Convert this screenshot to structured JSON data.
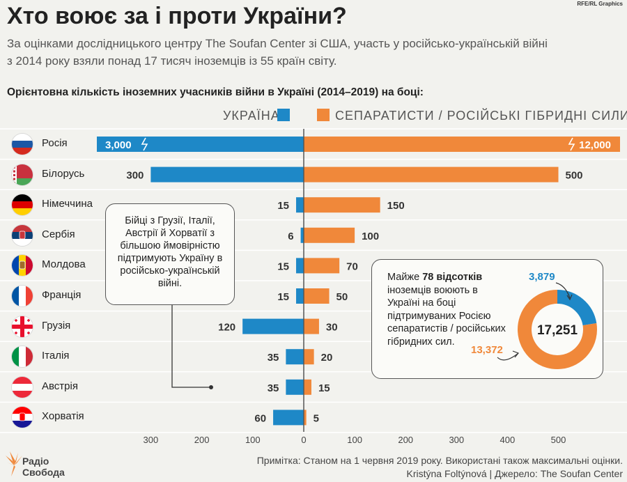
{
  "title": "Хто воює за і проти України?",
  "credit": "RFE/RL Graphics",
  "subtitle_lines": [
    "За оцінками дослідницького центру The Soufan Center зі США, участь у російсько-українській війні",
    "з 2014 року взяли понад 17 тисяч іноземців із 55 країн світу."
  ],
  "section_title": "Орієнтовна кількість іноземних учасників війни в Україні (2014–2019) на боці:",
  "callout": "Бійці з Грузії, Італії, Австрії й Хорватії з більшою ймовірністю підтримують Україну в російсько-українській війні.",
  "donut_text_html": "Майже <b>78 відсотків</b> іноземців воюють в Україні на боці підтримуваних Росією сепаратистів / російських гібридних сил.",
  "note": "Примітка: Станом на 1 червня 2019 року. Використані також максимальні оцінки.",
  "source": "Kristýna Foltýnová | Джерело: The Soufan Center",
  "logo_lines": [
    "Радіо",
    "Свобода"
  ],
  "colors": {
    "ukraine": "#1e88c7",
    "separatists": "#f0883a"
  },
  "chart_data": [
    {
      "type": "bar",
      "orientation": "diverging-horizontal",
      "categories": [
        "Росія",
        "Білорусь",
        "Німеччина",
        "Сербія",
        "Молдова",
        "Франція",
        "Грузія",
        "Італія",
        "Австрія",
        "Хорватія"
      ],
      "series": [
        {
          "name": "Україна",
          "values": [
            3000,
            300,
            15,
            6,
            15,
            15,
            120,
            35,
            35,
            60
          ],
          "labels": [
            "3,000",
            "300",
            "15",
            "6",
            "15",
            "15",
            "120",
            "35",
            "35",
            "60"
          ]
        },
        {
          "name": "Сепаратисти / російські гібридні сили",
          "values": [
            12000,
            500,
            150,
            100,
            70,
            50,
            30,
            20,
            15,
            5
          ],
          "labels": [
            "12,000",
            "500",
            "150",
            "100",
            "70",
            "50",
            "30",
            "20",
            "15",
            "5"
          ]
        }
      ],
      "truncated_category": "Росія",
      "axis_ticks_left": [
        "300",
        "200",
        "100",
        "0"
      ],
      "axis_ticks_right": [
        "100",
        "200",
        "300",
        "400",
        "500"
      ],
      "xlim": [
        -300,
        500
      ]
    },
    {
      "type": "pie",
      "variant": "donut",
      "total": 17251,
      "total_label": "17,251",
      "slices": [
        {
          "name": "Україна",
          "value": 3879,
          "label": "3,879"
        },
        {
          "name": "Сепаратисти / російські гібридні сили",
          "value": 13372,
          "label": "13,372"
        }
      ]
    }
  ]
}
